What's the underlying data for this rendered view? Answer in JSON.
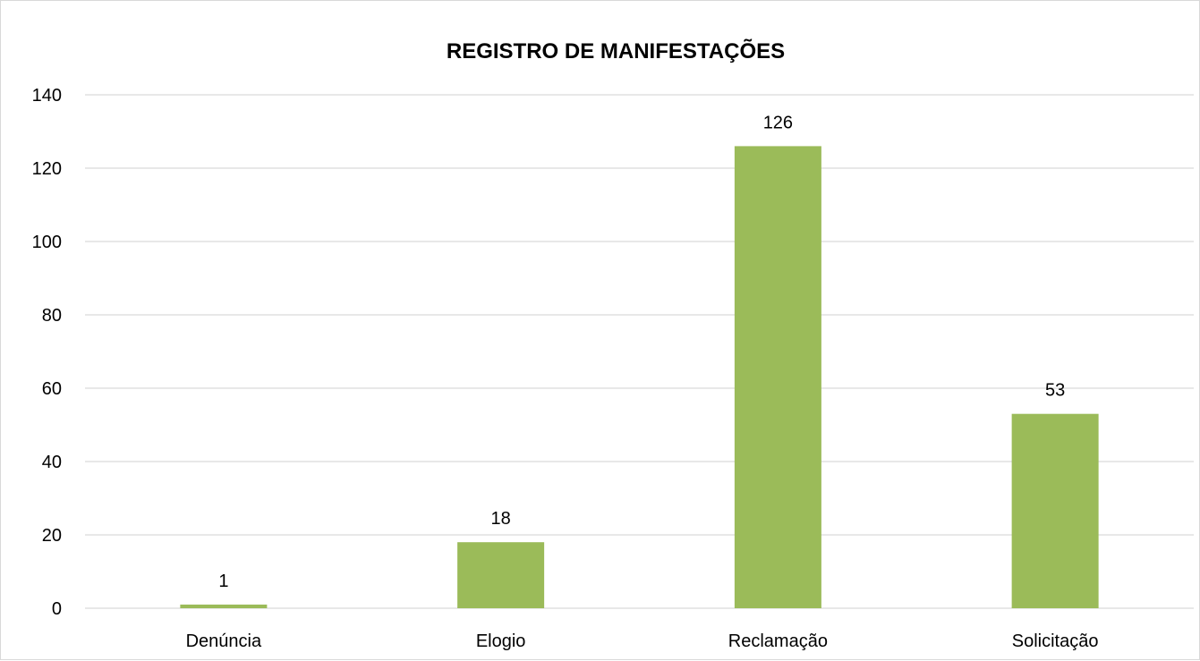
{
  "chart_data": {
    "type": "bar",
    "title": "REGISTRO DE MANIFESTAÇÕES",
    "categories": [
      "Denúncia",
      "Elogio",
      "Reclamação",
      "Solicitação"
    ],
    "values": [
      1,
      18,
      126,
      53
    ],
    "data_labels": [
      "1",
      "18",
      "126",
      "53"
    ],
    "yticks": [
      0,
      20,
      40,
      60,
      80,
      100,
      120,
      140
    ],
    "ylim": [
      0,
      140
    ],
    "grid": true,
    "legend": "none",
    "bar_color": "#9bbb59",
    "grid_color": "#d9d9d9"
  }
}
